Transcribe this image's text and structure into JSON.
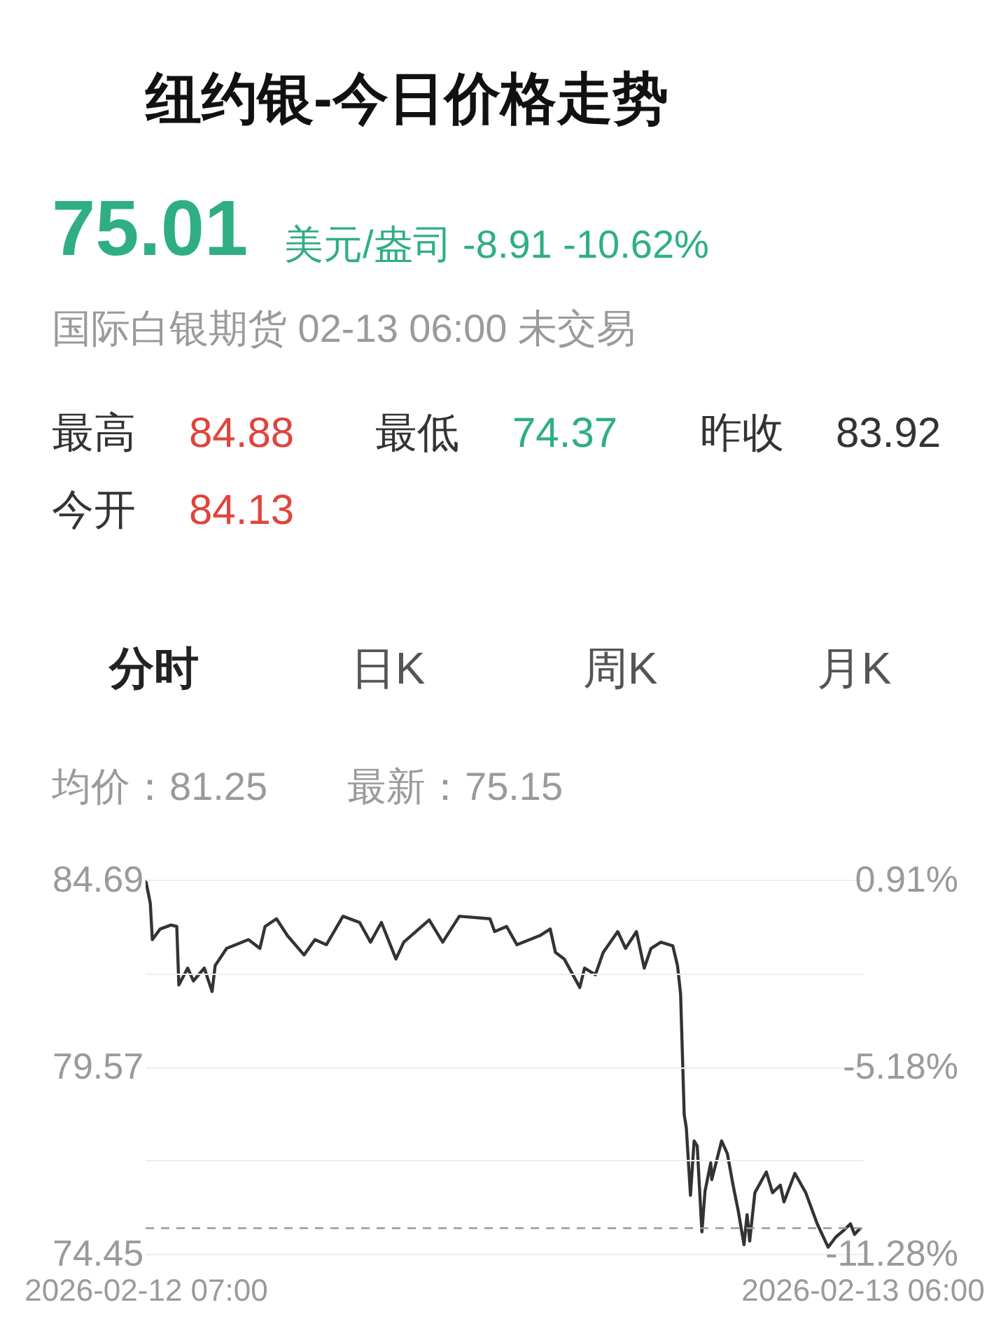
{
  "chart_data": {
    "type": "line",
    "title": "纽约银-今日价格走势",
    "annotations": [
      "75.01",
      "美元/盎司 -8.91 -10.62%",
      "国际白银期货 02-13 06:00 未交易",
      "最高",
      "84.88",
      "最低",
      "74.37",
      "昨收",
      "83.92",
      "今开",
      "84.13",
      "分时",
      "日K",
      "周K",
      "月K",
      "均价：81.25",
      "最新：75.15"
    ],
    "x": [
      "2026-02-12T07:00",
      "2026-02-12T07:09",
      "2026-02-12T07:13",
      "2026-02-12T07:28",
      "2026-02-12T07:49",
      "2026-02-12T08:00",
      "2026-02-12T08:04",
      "2026-02-12T08:21",
      "2026-02-12T08:32",
      "2026-02-12T08:53",
      "2026-02-12T09:08",
      "2026-02-12T09:14",
      "2026-02-12T09:36",
      "2026-02-12T10:18",
      "2026-02-12T10:40",
      "2026-02-12T10:50",
      "2026-02-12T11:12",
      "2026-02-12T11:33",
      "2026-02-12T12:05",
      "2026-02-12T12:26",
      "2026-02-12T12:48",
      "2026-02-12T13:20",
      "2026-02-12T13:52",
      "2026-02-12T14:13",
      "2026-02-12T14:34",
      "2026-02-12T15:02",
      "2026-02-12T15:17",
      "2026-02-12T16:06",
      "2026-02-12T16:32",
      "2026-02-12T17:04",
      "2026-02-12T18:03",
      "2026-02-12T18:12",
      "2026-02-12T18:35",
      "2026-02-12T18:55",
      "2026-02-12T19:39",
      "2026-02-12T19:59",
      "2026-02-12T20:09",
      "2026-02-12T20:26",
      "2026-02-12T20:56",
      "2026-02-12T21:05",
      "2026-02-12T21:26",
      "2026-02-12T21:41",
      "2026-02-12T22:09",
      "2026-02-12T22:24",
      "2026-02-12T22:45",
      "2026-02-12T23:00",
      "2026-02-12T23:13",
      "2026-02-12T23:32",
      "2026-02-12T23:55",
      "2026-02-13T00:04",
      "2026-02-13T00:10",
      "2026-02-13T00:17",
      "2026-02-13T00:21",
      "2026-02-13T00:29",
      "2026-02-13T00:36",
      "2026-02-13T00:42",
      "2026-02-13T00:51",
      "2026-02-13T00:57",
      "2026-02-13T01:08",
      "2026-02-13T01:10",
      "2026-02-13T01:29",
      "2026-02-13T01:40",
      "2026-02-13T01:51",
      "2026-02-13T02:01",
      "2026-02-13T02:12",
      "2026-02-13T02:18",
      "2026-02-13T02:23",
      "2026-02-13T02:33",
      "2026-02-13T02:55",
      "2026-02-13T03:07",
      "2026-02-13T03:22",
      "2026-02-13T03:29",
      "2026-02-13T03:50",
      "2026-02-13T04:11",
      "2026-02-13T04:33",
      "2026-02-13T04:54",
      "2026-02-13T05:09",
      "2026-02-13T05:24",
      "2026-02-13T05:37",
      "2026-02-13T05:45",
      "2026-02-13T05:56"
    ],
    "series": [
      {
        "color": "#333333",
        "values": [
          84.69,
          84.05,
          83.05,
          83.34,
          83.45,
          83.41,
          81.81,
          82.27,
          81.92,
          82.27,
          81.63,
          82.34,
          82.81,
          83.05,
          82.81,
          83.41,
          83.62,
          83.16,
          82.63,
          83.05,
          82.91,
          83.69,
          83.52,
          82.98,
          83.52,
          82.52,
          82.98,
          83.59,
          82.98,
          83.69,
          83.62,
          83.27,
          83.41,
          82.91,
          83.16,
          83.34,
          82.7,
          82.52,
          81.74,
          82.27,
          82.09,
          82.7,
          83.27,
          82.81,
          83.27,
          82.27,
          82.81,
          82.98,
          82.88,
          82.34,
          81.56,
          78.25,
          77.9,
          76.05,
          77.54,
          77.4,
          75.05,
          76.16,
          76.94,
          76.48,
          77.54,
          77.19,
          76.33,
          75.62,
          74.7,
          75.52,
          74.8,
          76.12,
          76.69,
          76.12,
          76.33,
          75.87,
          76.65,
          76.12,
          75.27,
          74.63,
          74.91,
          75.09,
          75.27,
          74.98,
          75.15
        ]
      }
    ],
    "xlim": [
      "2026-02-12T07:00",
      "2026-02-13T06:00"
    ],
    "xticks": [
      {
        "value": "2026-02-12T07:00",
        "label": "2026-02-12 07:00"
      },
      {
        "value": "2026-02-13T06:00",
        "label": "2026-02-13 06:00"
      }
    ],
    "ylim": [
      74.45,
      84.69
    ],
    "yticks": [
      84.69,
      {
        "value": 82.13,
        "label": null
      },
      79.57,
      {
        "value": 77.01,
        "label": null
      },
      74.45
    ],
    "y2lim": [
      -11.28,
      0.91
    ],
    "y2ticks": [
      {
        "value": 0.91,
        "label": "0.91%"
      },
      {
        "value": -5.18,
        "label": "-5.18%"
      },
      {
        "value": -11.28,
        "label": "-11.28%"
      }
    ],
    "ref_lines": [
      {
        "axis": "y",
        "value": 75.15,
        "color": "#999999",
        "line_style": "dashed"
      }
    ],
    "grid": "y"
  }
}
